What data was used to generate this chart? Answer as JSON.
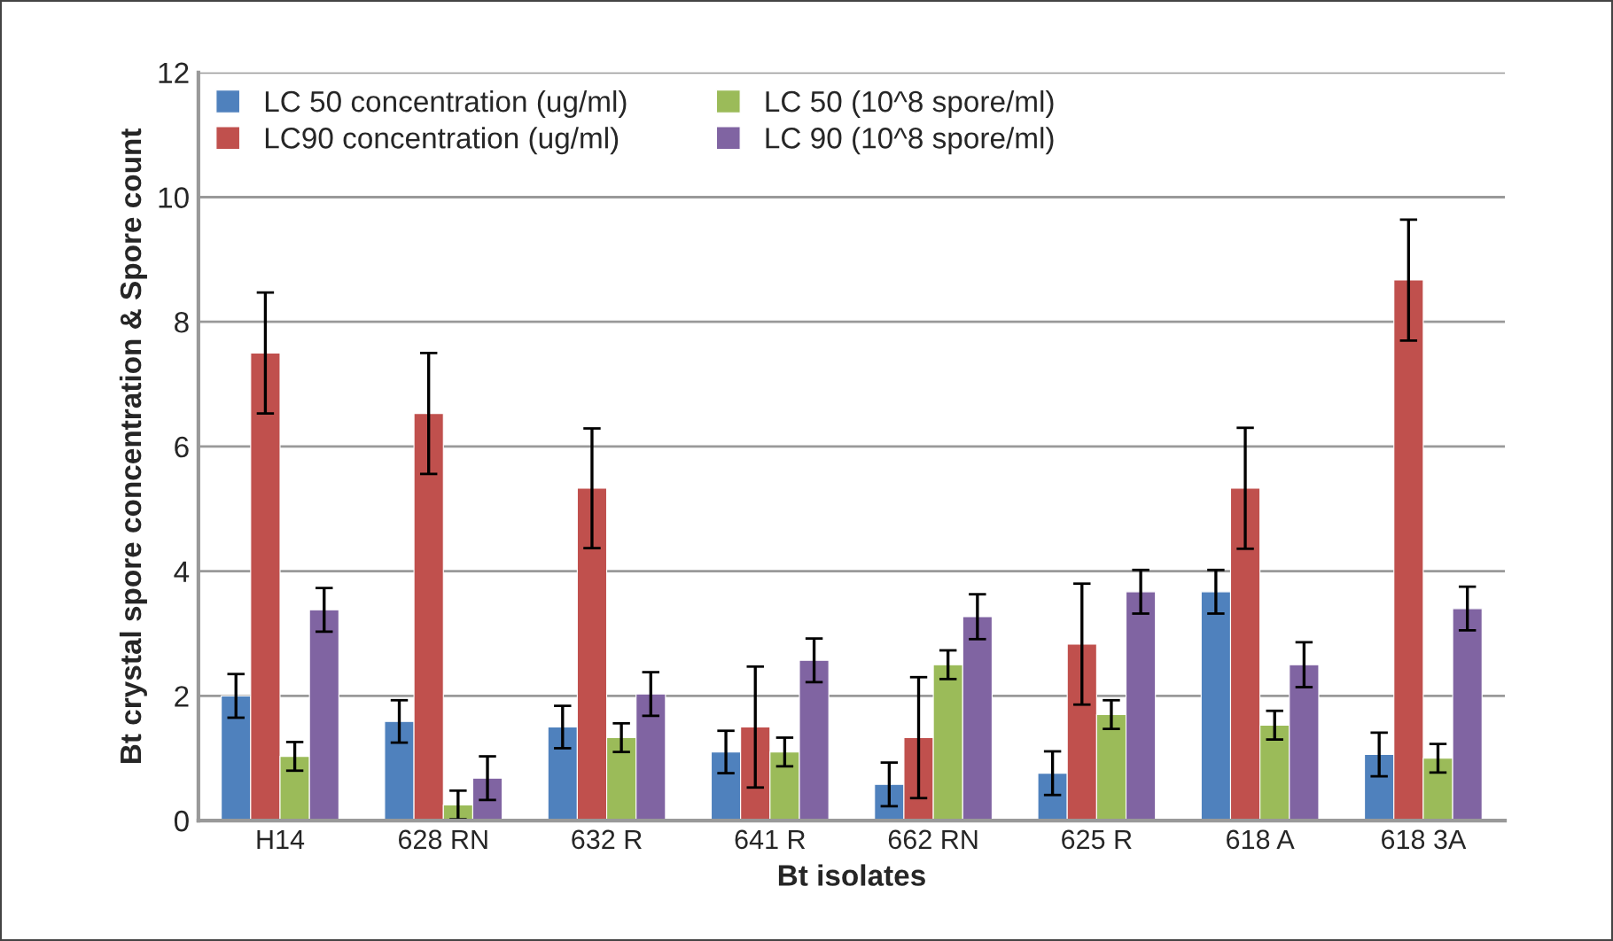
{
  "chart_data": {
    "type": "bar",
    "xlabel": "Bt isolates",
    "ylabel": "Bt crystal spore concentration & Spore count",
    "categories": [
      "H14",
      "628 RN",
      "632 R",
      "641 R",
      "662 RN",
      "625 R",
      "618 A",
      "618 3A"
    ],
    "series": [
      {
        "name": "LC 50 concentration (ug/ml)",
        "color": "#4f81bd",
        "values": [
          2.0,
          1.59,
          1.5,
          1.1,
          0.58,
          0.76,
          3.67,
          1.06
        ],
        "errors": [
          0.35,
          0.34,
          0.34,
          0.34,
          0.35,
          0.35,
          0.35,
          0.35
        ]
      },
      {
        "name": "LC90 concentration (ug/ml)",
        "color": "#c0504d",
        "values": [
          7.5,
          6.53,
          5.33,
          1.5,
          1.33,
          2.83,
          5.33,
          8.67
        ],
        "errors": [
          0.97,
          0.97,
          0.96,
          0.97,
          0.97,
          0.97,
          0.97,
          0.97
        ]
      },
      {
        "name": "LC 50 (10^8 spore/ml)",
        "color": "#9bbb59",
        "values": [
          1.03,
          0.25,
          1.33,
          1.1,
          2.5,
          1.7,
          1.53,
          1.0
        ],
        "errors": [
          0.23,
          0.23,
          0.23,
          0.23,
          0.23,
          0.23,
          0.23,
          0.23
        ]
      },
      {
        "name": "LC 90 (10^8 spore/ml)",
        "color": "#8064a2",
        "values": [
          3.38,
          0.68,
          2.03,
          2.57,
          3.27,
          3.67,
          2.5,
          3.4
        ],
        "errors": [
          0.35,
          0.35,
          0.35,
          0.35,
          0.36,
          0.35,
          0.36,
          0.35
        ]
      }
    ],
    "ylim": [
      0,
      12
    ],
    "yticks": [
      0,
      2,
      4,
      6,
      8,
      10,
      12
    ],
    "grid": "y",
    "legend": "top left"
  }
}
